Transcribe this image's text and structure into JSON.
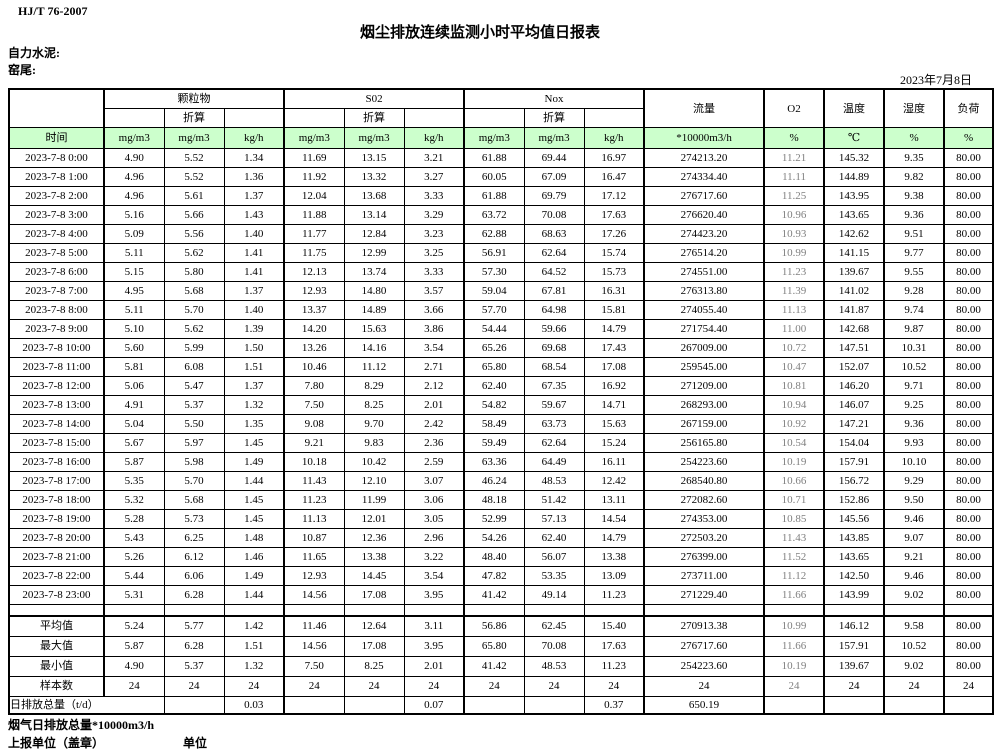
{
  "report": {
    "standard": "HJ/T 76-2007",
    "title": "烟尘排放连续监测小时平均值日报表",
    "company": "自力水泥:",
    "site": "窑尾:",
    "date": "2023年7月8日"
  },
  "table": {
    "time_label": "时间",
    "converted_label": "折算",
    "groups": {
      "pm": "颗粒物",
      "so2": "S02",
      "nox": "Nox",
      "flow": "流量",
      "o2": "O2",
      "temp": "温度",
      "humidity": "湿度",
      "load": "负荷"
    },
    "units": [
      "mg/m3",
      "mg/m3",
      "kg/h",
      "mg/m3",
      "mg/m3",
      "kg/h",
      "mg/m3",
      "mg/m3",
      "kg/h",
      "*10000m3/h",
      "%",
      "℃",
      "%",
      "%"
    ],
    "rows": [
      {
        "time": "2023-7-8 0:00",
        "values": [
          "4.90",
          "5.52",
          "1.34",
          "11.69",
          "13.15",
          "3.21",
          "61.88",
          "69.44",
          "16.97",
          "274213.20",
          "11.21",
          "145.32",
          "9.35",
          "80.00"
        ]
      },
      {
        "time": "2023-7-8 1:00",
        "values": [
          "4.96",
          "5.52",
          "1.36",
          "11.92",
          "13.32",
          "3.27",
          "60.05",
          "67.09",
          "16.47",
          "274334.40",
          "11.11",
          "144.89",
          "9.82",
          "80.00"
        ]
      },
      {
        "time": "2023-7-8 2:00",
        "values": [
          "4.96",
          "5.61",
          "1.37",
          "12.04",
          "13.68",
          "3.33",
          "61.88",
          "69.79",
          "17.12",
          "276717.60",
          "11.25",
          "143.95",
          "9.38",
          "80.00"
        ]
      },
      {
        "time": "2023-7-8 3:00",
        "values": [
          "5.16",
          "5.66",
          "1.43",
          "11.88",
          "13.14",
          "3.29",
          "63.72",
          "70.08",
          "17.63",
          "276620.40",
          "10.96",
          "143.65",
          "9.36",
          "80.00"
        ]
      },
      {
        "time": "2023-7-8 4:00",
        "values": [
          "5.09",
          "5.56",
          "1.40",
          "11.77",
          "12.84",
          "3.23",
          "62.88",
          "68.63",
          "17.26",
          "274423.20",
          "10.93",
          "142.62",
          "9.51",
          "80.00"
        ]
      },
      {
        "time": "2023-7-8 5:00",
        "values": [
          "5.11",
          "5.62",
          "1.41",
          "11.75",
          "12.99",
          "3.25",
          "56.91",
          "62.64",
          "15.74",
          "276514.20",
          "10.99",
          "141.15",
          "9.77",
          "80.00"
        ]
      },
      {
        "time": "2023-7-8 6:00",
        "values": [
          "5.15",
          "5.80",
          "1.41",
          "12.13",
          "13.74",
          "3.33",
          "57.30",
          "64.52",
          "15.73",
          "274551.00",
          "11.23",
          "139.67",
          "9.55",
          "80.00"
        ]
      },
      {
        "time": "2023-7-8 7:00",
        "values": [
          "4.95",
          "5.68",
          "1.37",
          "12.93",
          "14.80",
          "3.57",
          "59.04",
          "67.81",
          "16.31",
          "276313.80",
          "11.39",
          "141.02",
          "9.28",
          "80.00"
        ]
      },
      {
        "time": "2023-7-8 8:00",
        "values": [
          "5.11",
          "5.70",
          "1.40",
          "13.37",
          "14.89",
          "3.66",
          "57.70",
          "64.98",
          "15.81",
          "274055.40",
          "11.13",
          "141.87",
          "9.74",
          "80.00"
        ]
      },
      {
        "time": "2023-7-8 9:00",
        "values": [
          "5.10",
          "5.62",
          "1.39",
          "14.20",
          "15.63",
          "3.86",
          "54.44",
          "59.66",
          "14.79",
          "271754.40",
          "11.00",
          "142.68",
          "9.87",
          "80.00"
        ]
      },
      {
        "time": "2023-7-8 10:00",
        "values": [
          "5.60",
          "5.99",
          "1.50",
          "13.26",
          "14.16",
          "3.54",
          "65.26",
          "69.68",
          "17.43",
          "267009.00",
          "10.72",
          "147.51",
          "10.31",
          "80.00"
        ]
      },
      {
        "time": "2023-7-8 11:00",
        "values": [
          "5.81",
          "6.08",
          "1.51",
          "10.46",
          "11.12",
          "2.71",
          "65.80",
          "68.54",
          "17.08",
          "259545.00",
          "10.47",
          "152.07",
          "10.52",
          "80.00"
        ]
      },
      {
        "time": "2023-7-8 12:00",
        "values": [
          "5.06",
          "5.47",
          "1.37",
          "7.80",
          "8.29",
          "2.12",
          "62.40",
          "67.35",
          "16.92",
          "271209.00",
          "10.81",
          "146.20",
          "9.71",
          "80.00"
        ]
      },
      {
        "time": "2023-7-8 13:00",
        "values": [
          "4.91",
          "5.37",
          "1.32",
          "7.50",
          "8.25",
          "2.01",
          "54.82",
          "59.67",
          "14.71",
          "268293.00",
          "10.94",
          "146.07",
          "9.25",
          "80.00"
        ]
      },
      {
        "time": "2023-7-8 14:00",
        "values": [
          "5.04",
          "5.50",
          "1.35",
          "9.08",
          "9.70",
          "2.42",
          "58.49",
          "63.73",
          "15.63",
          "267159.00",
          "10.92",
          "147.21",
          "9.36",
          "80.00"
        ]
      },
      {
        "time": "2023-7-8 15:00",
        "values": [
          "5.67",
          "5.97",
          "1.45",
          "9.21",
          "9.83",
          "2.36",
          "59.49",
          "62.64",
          "15.24",
          "256165.80",
          "10.54",
          "154.04",
          "9.93",
          "80.00"
        ]
      },
      {
        "time": "2023-7-8 16:00",
        "values": [
          "5.87",
          "5.98",
          "1.49",
          "10.18",
          "10.42",
          "2.59",
          "63.36",
          "64.49",
          "16.11",
          "254223.60",
          "10.19",
          "157.91",
          "10.10",
          "80.00"
        ]
      },
      {
        "time": "2023-7-8 17:00",
        "values": [
          "5.35",
          "5.70",
          "1.44",
          "11.43",
          "12.10",
          "3.07",
          "46.24",
          "48.53",
          "12.42",
          "268540.80",
          "10.66",
          "156.72",
          "9.29",
          "80.00"
        ]
      },
      {
        "time": "2023-7-8 18:00",
        "values": [
          "5.32",
          "5.68",
          "1.45",
          "11.23",
          "11.99",
          "3.06",
          "48.18",
          "51.42",
          "13.11",
          "272082.60",
          "10.71",
          "152.86",
          "9.50",
          "80.00"
        ]
      },
      {
        "time": "2023-7-8 19:00",
        "values": [
          "5.28",
          "5.73",
          "1.45",
          "11.13",
          "12.01",
          "3.05",
          "52.99",
          "57.13",
          "14.54",
          "274353.00",
          "10.85",
          "145.56",
          "9.46",
          "80.00"
        ]
      },
      {
        "time": "2023-7-8 20:00",
        "values": [
          "5.43",
          "6.25",
          "1.48",
          "10.87",
          "12.36",
          "2.96",
          "54.26",
          "62.40",
          "14.79",
          "272503.20",
          "11.43",
          "143.85",
          "9.07",
          "80.00"
        ]
      },
      {
        "time": "2023-7-8 21:00",
        "values": [
          "5.26",
          "6.12",
          "1.46",
          "11.65",
          "13.38",
          "3.22",
          "48.40",
          "56.07",
          "13.38",
          "276399.00",
          "11.52",
          "143.65",
          "9.21",
          "80.00"
        ]
      },
      {
        "time": "2023-7-8 22:00",
        "values": [
          "5.44",
          "6.06",
          "1.49",
          "12.93",
          "14.45",
          "3.54",
          "47.82",
          "53.35",
          "13.09",
          "273711.00",
          "11.12",
          "142.50",
          "9.46",
          "80.00"
        ]
      },
      {
        "time": "2023-7-8 23:00",
        "values": [
          "5.31",
          "6.28",
          "1.44",
          "14.56",
          "17.08",
          "3.95",
          "41.42",
          "49.14",
          "11.23",
          "271229.40",
          "11.66",
          "143.99",
          "9.02",
          "80.00"
        ]
      }
    ],
    "summary": [
      {
        "label": "平均值",
        "values": [
          "5.24",
          "5.77",
          "1.42",
          "11.46",
          "12.64",
          "3.11",
          "56.86",
          "62.45",
          "15.40",
          "270913.38",
          "10.99",
          "146.12",
          "9.58",
          "80.00"
        ]
      },
      {
        "label": "最大值",
        "values": [
          "5.87",
          "6.28",
          "1.51",
          "14.56",
          "17.08",
          "3.95",
          "65.80",
          "70.08",
          "17.63",
          "276717.60",
          "11.66",
          "157.91",
          "10.52",
          "80.00"
        ]
      },
      {
        "label": "最小值",
        "values": [
          "4.90",
          "5.37",
          "1.32",
          "7.50",
          "8.25",
          "2.01",
          "41.42",
          "48.53",
          "11.23",
          "254223.60",
          "10.19",
          "139.67",
          "9.02",
          "80.00"
        ]
      },
      {
        "label": "样本数",
        "values": [
          "24",
          "24",
          "24",
          "24",
          "24",
          "24",
          "24",
          "24",
          "24",
          "24",
          "24",
          "24",
          "24",
          "24"
        ]
      }
    ],
    "daily_total": {
      "label": "日排放总量（t/d）",
      "cells": [
        "",
        "0.03",
        "",
        "",
        "0.07",
        "",
        "",
        "0.37",
        "650.19",
        "",
        "",
        "",
        ""
      ]
    }
  },
  "footer": {
    "flue_gas_total": "烟气日排放总量*10000m3/h",
    "reporting_unit": "上报单位（盖章）",
    "unit_label": "单位"
  },
  "colors": {
    "header_bg": "#ccffcc",
    "o2_text": "#808080"
  }
}
